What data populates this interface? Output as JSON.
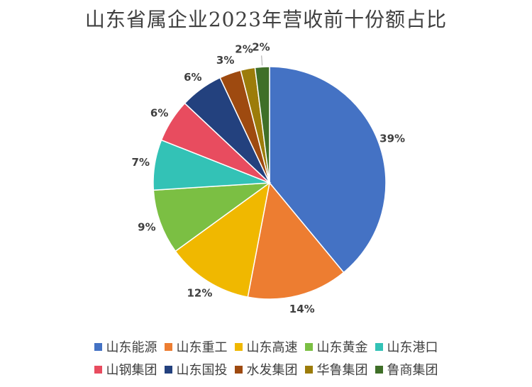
{
  "chart_data": {
    "type": "pie",
    "title": "山东省属企业2023年营收前十份额占比",
    "categories": [
      "山东能源",
      "山东重工",
      "山东高速",
      "山东黄金",
      "山东港口",
      "山钢集团",
      "山东国投",
      "水发集团",
      "华鲁集团",
      "鲁商集团"
    ],
    "values": [
      39,
      14,
      12,
      9,
      7,
      6,
      6,
      3,
      2,
      2
    ],
    "value_labels": [
      "39%",
      "14%",
      "12%",
      "9%",
      "7%",
      "6%",
      "6%",
      "3%",
      "2%",
      "2%"
    ],
    "colors": [
      "#4472C4",
      "#ED7D31",
      "#F0B800",
      "#7BBF43",
      "#33C2B6",
      "#E84C5F",
      "#23417E",
      "#9E4A10",
      "#9C7C0A",
      "#3F6F28"
    ],
    "legend_position": "bottom"
  }
}
